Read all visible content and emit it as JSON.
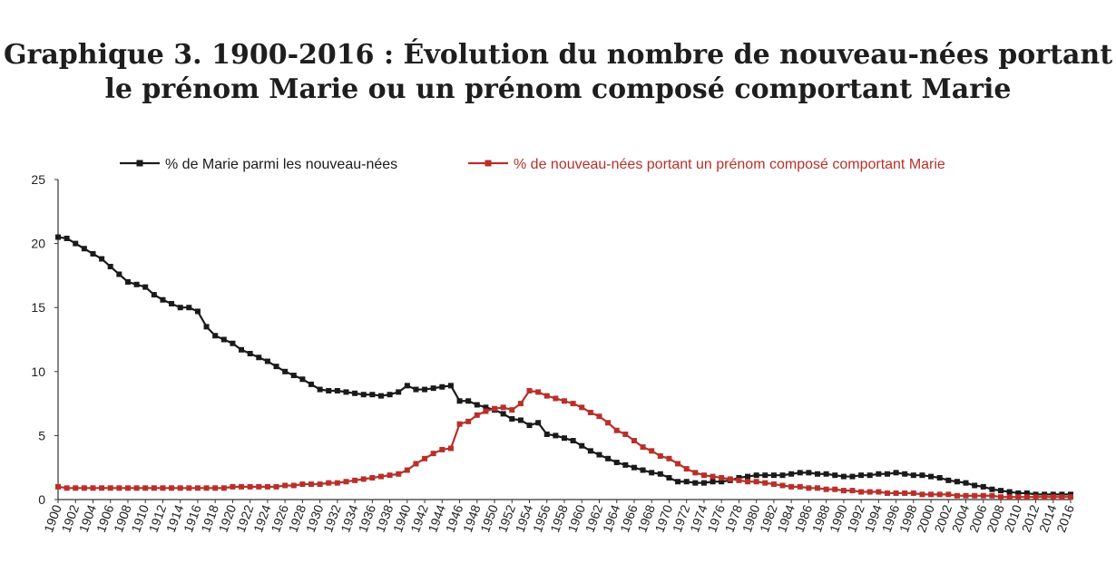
{
  "chart_data": {
    "type": "line",
    "title_line1": "Graphique 3. 1900-2016 : Évolution du nombre de nouveau-nées portant",
    "title_line2": "le prénom Marie ou un prénom composé comportant Marie",
    "xlabel": "",
    "ylabel": "",
    "xlim": [
      1900,
      2016
    ],
    "ylim": [
      0,
      25
    ],
    "y_ticks": [
      0,
      5,
      10,
      15,
      20,
      25
    ],
    "x_ticks": [
      1900,
      1902,
      1904,
      1906,
      1908,
      1910,
      1912,
      1914,
      1916,
      1918,
      1920,
      1922,
      1924,
      1926,
      1928,
      1930,
      1932,
      1934,
      1936,
      1938,
      1940,
      1942,
      1944,
      1946,
      1948,
      1950,
      1952,
      1954,
      1956,
      1958,
      1960,
      1962,
      1964,
      1966,
      1968,
      1970,
      1972,
      1974,
      1976,
      1978,
      1980,
      1982,
      1984,
      1986,
      1988,
      1990,
      1992,
      1994,
      1996,
      1998,
      2000,
      2002,
      2004,
      2006,
      2008,
      2010,
      2012,
      2014,
      2016
    ],
    "grid": false,
    "legend_position": "top",
    "series": [
      {
        "name": "% de Marie parmi les nouveau-nées",
        "color": "#1a1a1a",
        "x": [
          1900,
          1901,
          1902,
          1903,
          1904,
          1905,
          1906,
          1907,
          1908,
          1909,
          1910,
          1911,
          1912,
          1913,
          1914,
          1915,
          1916,
          1917,
          1918,
          1919,
          1920,
          1921,
          1922,
          1923,
          1924,
          1925,
          1926,
          1927,
          1928,
          1929,
          1930,
          1931,
          1932,
          1933,
          1934,
          1935,
          1936,
          1937,
          1938,
          1939,
          1940,
          1941,
          1942,
          1943,
          1944,
          1945,
          1946,
          1947,
          1948,
          1949,
          1950,
          1951,
          1952,
          1953,
          1954,
          1955,
          1956,
          1957,
          1958,
          1959,
          1960,
          1961,
          1962,
          1963,
          1964,
          1965,
          1966,
          1967,
          1968,
          1969,
          1970,
          1971,
          1972,
          1973,
          1974,
          1975,
          1976,
          1977,
          1978,
          1979,
          1980,
          1981,
          1982,
          1983,
          1984,
          1985,
          1986,
          1987,
          1988,
          1989,
          1990,
          1991,
          1992,
          1993,
          1994,
          1995,
          1996,
          1997,
          1998,
          1999,
          2000,
          2001,
          2002,
          2003,
          2004,
          2005,
          2006,
          2007,
          2008,
          2009,
          2010,
          2011,
          2012,
          2013,
          2014,
          2015,
          2016
        ],
        "values": [
          20.5,
          20.4,
          20,
          19.6,
          19.2,
          18.8,
          18.2,
          17.6,
          17,
          16.8,
          16.6,
          16,
          15.6,
          15.3,
          15,
          15,
          14.7,
          13.5,
          12.8,
          12.5,
          12.2,
          11.7,
          11.4,
          11.1,
          10.8,
          10.4,
          10,
          9.7,
          9.4,
          9,
          8.6,
          8.5,
          8.5,
          8.4,
          8.3,
          8.2,
          8.2,
          8.1,
          8.2,
          8.4,
          8.9,
          8.6,
          8.6,
          8.7,
          8.8,
          8.9,
          7.7,
          7.7,
          7.4,
          7.2,
          7,
          6.7,
          6.3,
          6.2,
          5.8,
          6,
          5.1,
          5,
          4.8,
          4.6,
          4.2,
          3.8,
          3.5,
          3.2,
          2.9,
          2.7,
          2.5,
          2.3,
          2.1,
          2,
          1.7,
          1.4,
          1.4,
          1.3,
          1.3,
          1.4,
          1.4,
          1.5,
          1.7,
          1.8,
          1.9,
          1.9,
          1.9,
          1.9,
          2,
          2.1,
          2.1,
          2,
          2,
          1.9,
          1.8,
          1.8,
          1.9,
          1.9,
          2,
          2,
          2.1,
          2,
          1.9,
          1.9,
          1.8,
          1.7,
          1.5,
          1.4,
          1.3,
          1.1,
          1,
          0.8,
          0.7,
          0.6,
          0.5,
          0.5,
          0.4,
          0.4,
          0.4,
          0.4,
          0.4
        ]
      },
      {
        "name": "% de nouveau-nées portant un prénom composé comportant Marie",
        "color": "#b8302a",
        "x": [
          1900,
          1901,
          1902,
          1903,
          1904,
          1905,
          1906,
          1907,
          1908,
          1909,
          1910,
          1911,
          1912,
          1913,
          1914,
          1915,
          1916,
          1917,
          1918,
          1919,
          1920,
          1921,
          1922,
          1923,
          1924,
          1925,
          1926,
          1927,
          1928,
          1929,
          1930,
          1931,
          1932,
          1933,
          1934,
          1935,
          1936,
          1937,
          1938,
          1939,
          1940,
          1941,
          1942,
          1943,
          1944,
          1945,
          1946,
          1947,
          1948,
          1949,
          1950,
          1951,
          1952,
          1953,
          1954,
          1955,
          1956,
          1957,
          1958,
          1959,
          1960,
          1961,
          1962,
          1963,
          1964,
          1965,
          1966,
          1967,
          1968,
          1969,
          1970,
          1971,
          1972,
          1973,
          1974,
          1975,
          1976,
          1977,
          1978,
          1979,
          1980,
          1981,
          1982,
          1983,
          1984,
          1985,
          1986,
          1987,
          1988,
          1989,
          1990,
          1991,
          1992,
          1993,
          1994,
          1995,
          1996,
          1997,
          1998,
          1999,
          2000,
          2001,
          2002,
          2003,
          2004,
          2005,
          2006,
          2007,
          2008,
          2009,
          2010,
          2011,
          2012,
          2013,
          2014,
          2015,
          2016
        ],
        "values": [
          1,
          0.9,
          0.9,
          0.9,
          0.9,
          0.9,
          0.9,
          0.9,
          0.9,
          0.9,
          0.9,
          0.9,
          0.9,
          0.9,
          0.9,
          0.9,
          0.9,
          0.9,
          0.9,
          0.9,
          1,
          1,
          1,
          1,
          1,
          1,
          1.1,
          1.1,
          1.2,
          1.2,
          1.2,
          1.3,
          1.3,
          1.4,
          1.5,
          1.6,
          1.7,
          1.8,
          1.9,
          2,
          2.3,
          2.8,
          3.2,
          3.6,
          3.9,
          4,
          5.9,
          6.1,
          6.6,
          6.9,
          7.1,
          7.2,
          7,
          7.5,
          8.5,
          8.4,
          8.1,
          7.9,
          7.7,
          7.5,
          7.2,
          6.8,
          6.5,
          6,
          5.4,
          5.1,
          4.6,
          4.1,
          3.8,
          3.4,
          3.2,
          2.8,
          2.4,
          2.1,
          1.9,
          1.8,
          1.7,
          1.6,
          1.5,
          1.4,
          1.4,
          1.3,
          1.2,
          1.1,
          1,
          1,
          0.9,
          0.9,
          0.8,
          0.8,
          0.7,
          0.7,
          0.6,
          0.6,
          0.6,
          0.5,
          0.5,
          0.5,
          0.5,
          0.4,
          0.4,
          0.4,
          0.4,
          0.3,
          0.3,
          0.3,
          0.3,
          0.3,
          0.2,
          0.2,
          0.2,
          0.2,
          0.2,
          0.2,
          0.2,
          0.2,
          0.2
        ]
      }
    ]
  }
}
